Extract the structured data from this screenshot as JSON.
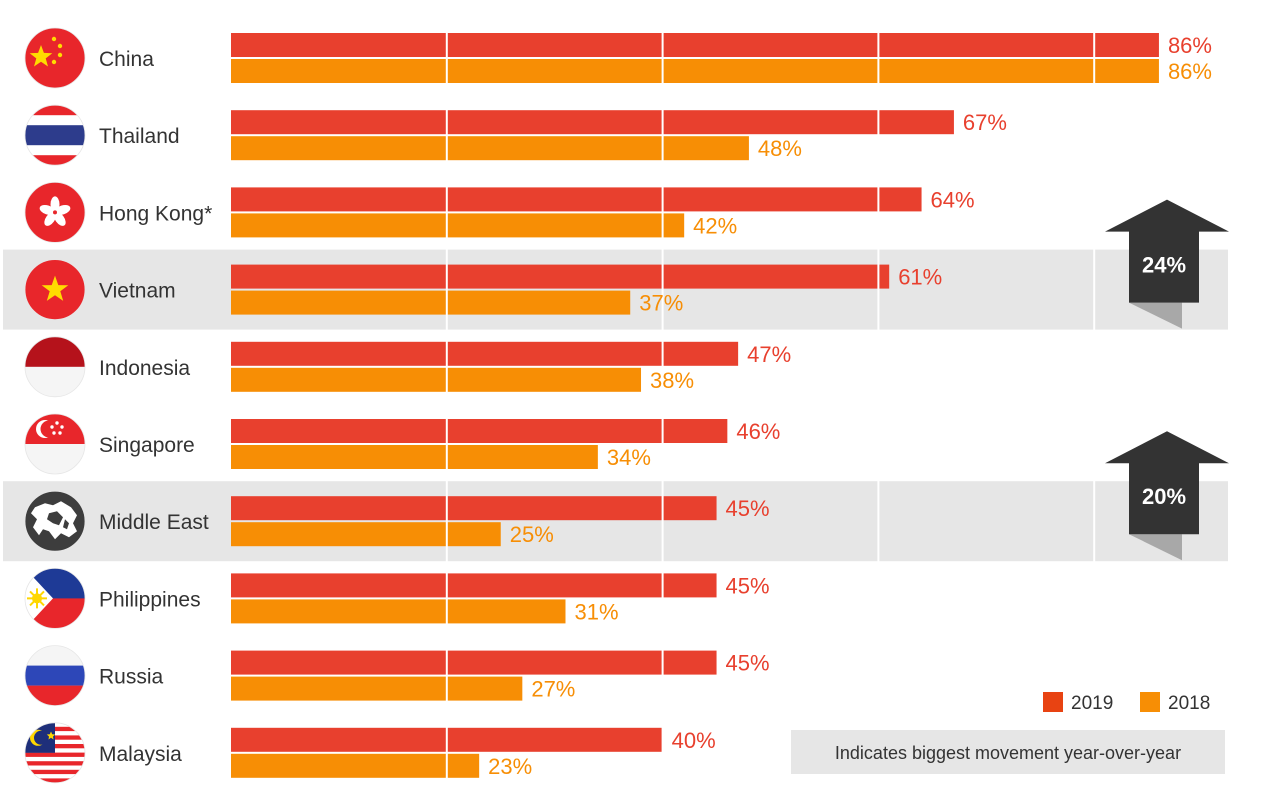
{
  "chart_data": {
    "type": "bar",
    "orientation": "horizontal",
    "categories": [
      "China",
      "Thailand",
      "Hong Kong*",
      "Vietnam",
      "Indonesia",
      "Singapore",
      "Middle East",
      "Philippines",
      "Russia",
      "Malaysia"
    ],
    "series": [
      {
        "name": "2019",
        "color": "#e8402e",
        "values": [
          86,
          67,
          64,
          61,
          47,
          46,
          45,
          45,
          45,
          40
        ],
        "labels": [
          "86%",
          "67%",
          "64%",
          "61%",
          "47%",
          "46%",
          "45%",
          "45%",
          "45%",
          "40%"
        ]
      },
      {
        "name": "2018",
        "color": "#f78e05",
        "values": [
          86,
          48,
          42,
          37,
          38,
          34,
          25,
          31,
          27,
          23
        ],
        "labels": [
          "86%",
          "48%",
          "42%",
          "37%",
          "38%",
          "34%",
          "25%",
          "31%",
          "27%",
          "23%"
        ]
      }
    ],
    "xlim": [
      0,
      100
    ],
    "grid": true,
    "highlighted_categories": [
      "Vietnam",
      "Middle East"
    ],
    "annotations": [
      {
        "category": "Vietnam",
        "label": "24%",
        "shape": "up-arrow",
        "color": "#333333"
      },
      {
        "category": "Middle East",
        "label": "20%",
        "shape": "up-arrow",
        "color": "#333333"
      }
    ],
    "legend": {
      "placement": "bottom-right",
      "entries": [
        {
          "label": "2019",
          "color": "#e84312"
        },
        {
          "label": "2018",
          "color": "#f78e05"
        }
      ]
    },
    "note": "Indicates biggest movement year-over-year",
    "flag_icons": [
      "china-flag-icon",
      "thailand-flag-icon",
      "hong-kong-flag-icon",
      "vietnam-flag-icon",
      "indonesia-flag-icon",
      "singapore-flag-icon",
      "middle-east-map-icon",
      "philippines-flag-icon",
      "russia-flag-icon",
      "malaysia-flag-icon"
    ]
  }
}
